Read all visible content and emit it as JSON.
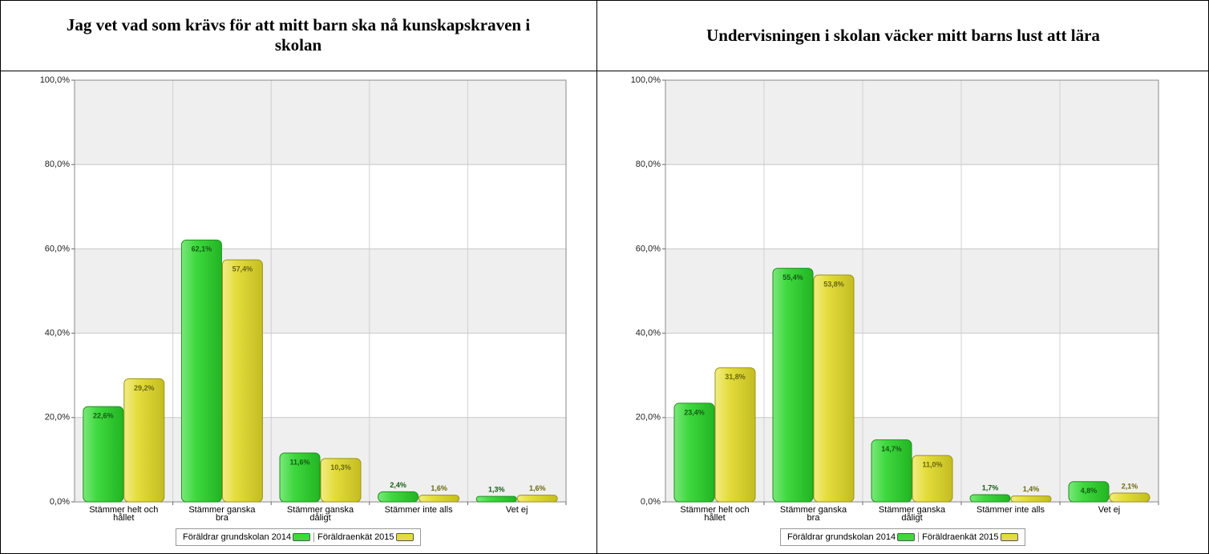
{
  "chart_data": [
    {
      "type": "bar",
      "title": "Jag vet vad som krävs för att mitt barn ska nå kunskapskraven i skolan",
      "categories": [
        "Stämmer helt och hållet",
        "Stämmer ganska bra",
        "Stämmer ganska dåligt",
        "Stämmer inte alls",
        "Vet ej"
      ],
      "series": [
        {
          "name": "Föräldrar grundskolan 2014",
          "color": "#3fd83f",
          "values": [
            22.6,
            62.1,
            11.6,
            2.4,
            1.3
          ],
          "value_labels": [
            "22,6%",
            "62,1%",
            "11,6%",
            "2,4%",
            "1,3%"
          ]
        },
        {
          "name": "Föräldraenkät 2015",
          "color": "#e3dc3c",
          "values": [
            29.2,
            57.4,
            10.3,
            1.6,
            1.6
          ],
          "value_labels": [
            "29,2%",
            "57,4%",
            "10,3%",
            "1,6%",
            "1,6%"
          ]
        }
      ],
      "ylim": [
        0,
        100
      ],
      "yticks": [
        {
          "value": 0,
          "label": "0,0%"
        },
        {
          "value": 20,
          "label": "20,0%"
        },
        {
          "value": 40,
          "label": "40,0%"
        },
        {
          "value": 60,
          "label": "60,0%"
        },
        {
          "value": 80,
          "label": "80,0%"
        },
        {
          "value": 100,
          "label": "100,0%"
        }
      ],
      "grid": true
    },
    {
      "type": "bar",
      "title": "Undervisningen i skolan väcker mitt barns lust att lära",
      "categories": [
        "Stämmer helt och hållet",
        "Stämmer ganska bra",
        "Stämmer ganska dåligt",
        "Stämmer inte alls",
        "Vet ej"
      ],
      "series": [
        {
          "name": "Föräldrar grundskolan 2014",
          "color": "#3fd83f",
          "values": [
            23.4,
            55.4,
            14.7,
            1.7,
            4.8
          ],
          "value_labels": [
            "23,4%",
            "55,4%",
            "14,7%",
            "1,7%",
            "4,8%"
          ]
        },
        {
          "name": "Föräldraenkät 2015",
          "color": "#e3dc3c",
          "values": [
            31.8,
            53.8,
            11.0,
            1.4,
            2.1
          ],
          "value_labels": [
            "31,8%",
            "53,8%",
            "11,0%",
            "1,4%",
            "2,1%"
          ]
        }
      ],
      "ylim": [
        0,
        100
      ],
      "yticks": [
        {
          "value": 0,
          "label": "0,0%"
        },
        {
          "value": 20,
          "label": "20,0%"
        },
        {
          "value": 40,
          "label": "40,0%"
        },
        {
          "value": 60,
          "label": "60,0%"
        },
        {
          "value": 80,
          "label": "80,0%"
        },
        {
          "value": 100,
          "label": "100,0%"
        }
      ],
      "grid": true
    }
  ]
}
